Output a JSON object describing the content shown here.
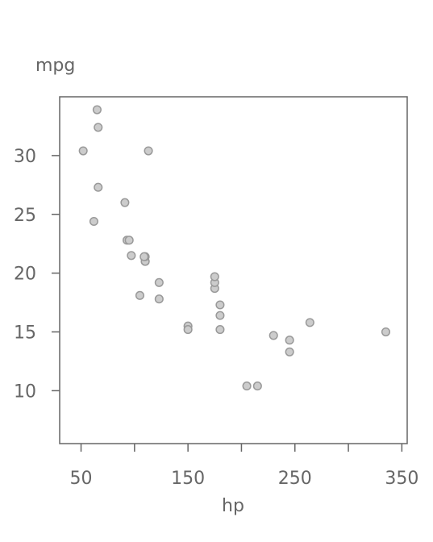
{
  "chart_data": {
    "type": "scatter",
    "title": "",
    "xlabel": "hp",
    "ylabel": "mpg",
    "xlim": [
      30,
      355
    ],
    "ylim": [
      5.5,
      35.0
    ],
    "xticks": [
      50,
      150,
      250,
      350
    ],
    "xtick_labels": [
      "50",
      "150",
      "250",
      "350"
    ],
    "xticks_minor": [
      100,
      200,
      300
    ],
    "yticks": [
      10,
      15,
      20,
      25,
      30
    ],
    "ytick_labels": [
      "10",
      "15",
      "20",
      "25",
      "30"
    ],
    "grid": false,
    "legend": "none",
    "marker_fill": "#cccccc",
    "marker_stroke": "#999999",
    "axis_color": "#666666",
    "points": [
      {
        "x": 110,
        "y": 21.0
      },
      {
        "x": 110,
        "y": 21.0
      },
      {
        "x": 93,
        "y": 22.8
      },
      {
        "x": 110,
        "y": 21.4
      },
      {
        "x": 175,
        "y": 18.7
      },
      {
        "x": 105,
        "y": 18.1
      },
      {
        "x": 245,
        "y": 14.3
      },
      {
        "x": 62,
        "y": 24.4
      },
      {
        "x": 95,
        "y": 22.8
      },
      {
        "x": 123,
        "y": 19.2
      },
      {
        "x": 123,
        "y": 17.8
      },
      {
        "x": 180,
        "y": 16.4
      },
      {
        "x": 180,
        "y": 17.3
      },
      {
        "x": 180,
        "y": 15.2
      },
      {
        "x": 205,
        "y": 10.4
      },
      {
        "x": 215,
        "y": 10.4
      },
      {
        "x": 230,
        "y": 14.7
      },
      {
        "x": 66,
        "y": 32.4
      },
      {
        "x": 52,
        "y": 30.4
      },
      {
        "x": 65,
        "y": 33.9
      },
      {
        "x": 97,
        "y": 21.5
      },
      {
        "x": 150,
        "y": 15.5
      },
      {
        "x": 150,
        "y": 15.2
      },
      {
        "x": 245,
        "y": 13.3
      },
      {
        "x": 175,
        "y": 19.2
      },
      {
        "x": 66,
        "y": 27.3
      },
      {
        "x": 91,
        "y": 26.0
      },
      {
        "x": 113,
        "y": 30.4
      },
      {
        "x": 264,
        "y": 15.8
      },
      {
        "x": 175,
        "y": 19.7
      },
      {
        "x": 335,
        "y": 15.0
      },
      {
        "x": 109,
        "y": 21.4
      }
    ]
  }
}
